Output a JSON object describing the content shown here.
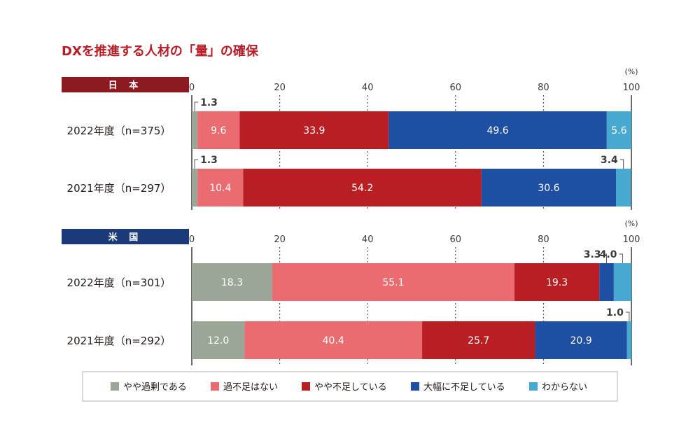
{
  "chart_data": {
    "type": "bar",
    "orientation": "horizontal",
    "stacked": true,
    "title": "DXを推進する人材の「量」の確保",
    "xlim": [
      0,
      100
    ],
    "ticks": [
      0,
      20,
      40,
      60,
      80,
      100
    ],
    "unit_label": "(%)",
    "grid": "dotted vertical",
    "legend": "bottom",
    "series_colors": [
      "#9ba696",
      "#eb6c70",
      "#b91e23",
      "#1f4fa3",
      "#47a9d0"
    ],
    "series": [
      {
        "name": "やや過剰である"
      },
      {
        "name": "過不足はない"
      },
      {
        "name": "やや不足している"
      },
      {
        "name": "大幅に不足している"
      },
      {
        "name": "わからない"
      }
    ],
    "groups": [
      {
        "name": "日 本",
        "color": "#8c1a20",
        "rows": [
          {
            "label": "2022年度（n=375）",
            "values": [
              1.3,
              9.6,
              33.9,
              49.6,
              5.6
            ]
          },
          {
            "label": "2021年度（n=297）",
            "values": [
              1.3,
              10.4,
              54.2,
              30.6,
              3.4
            ]
          }
        ]
      },
      {
        "name": "米 国",
        "color": "#1c3a7a",
        "rows": [
          {
            "label": "2022年度（n=301）",
            "values": [
              18.3,
              55.1,
              19.3,
              3.3,
              4.0
            ]
          },
          {
            "label": "2021年度（n=292）",
            "values": [
              12.0,
              40.4,
              25.7,
              20.9,
              1.0
            ]
          }
        ]
      }
    ]
  }
}
